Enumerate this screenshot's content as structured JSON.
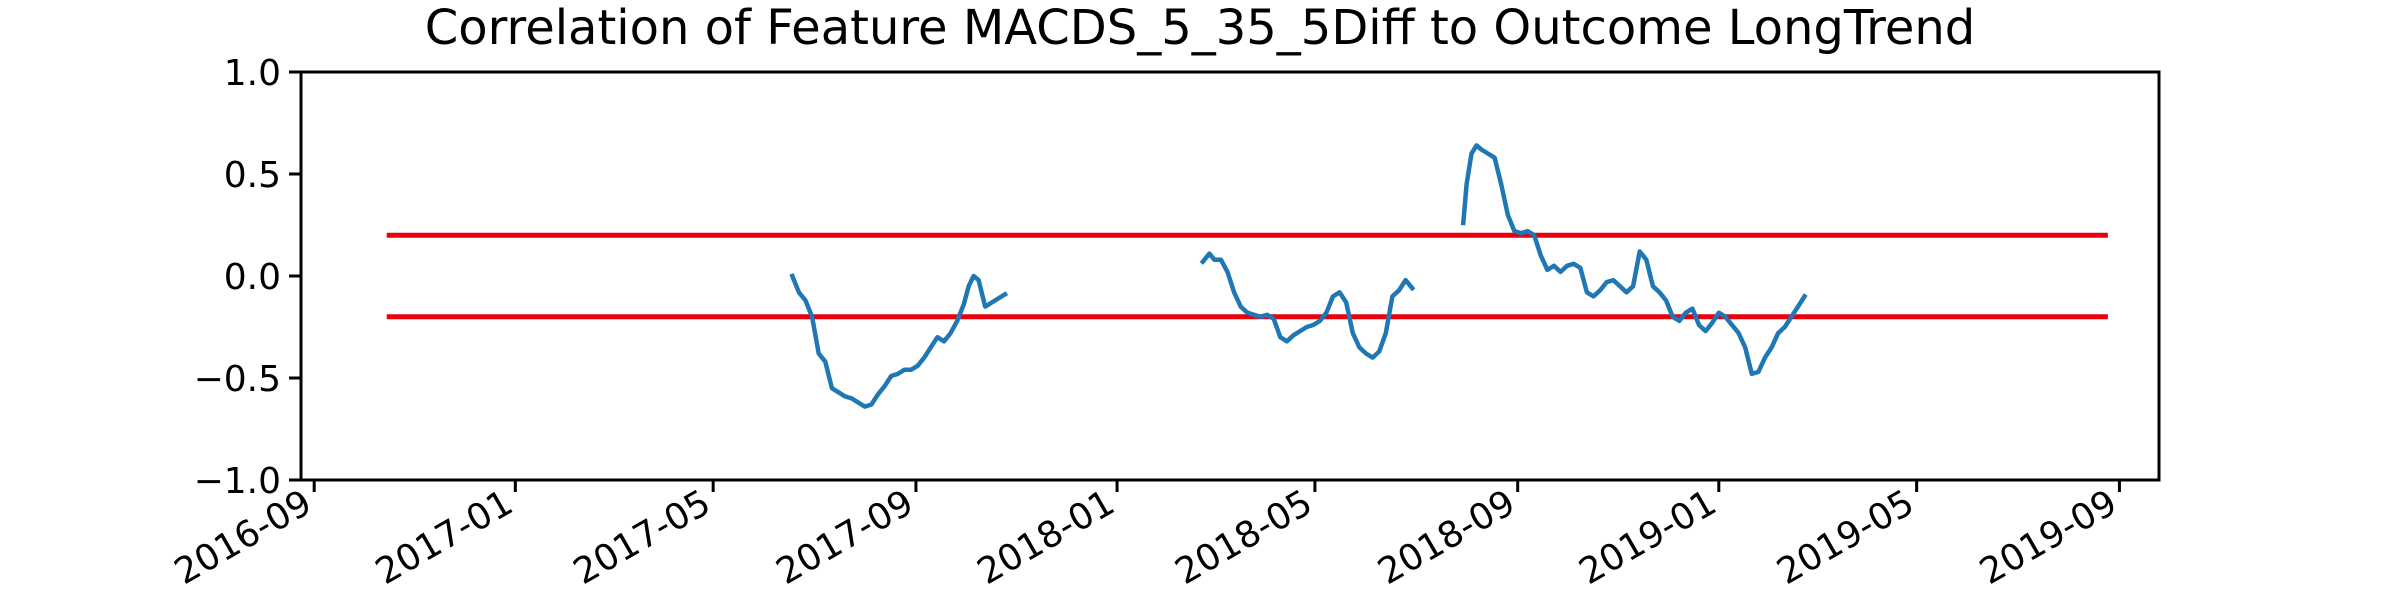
{
  "chart_data": {
    "type": "line",
    "title": "Correlation of Feature MACDS_5_35_5Diff to Outcome LongTrend",
    "xlabel": "",
    "ylabel": "",
    "xlim": [
      "2016-08-24",
      "2019-09-25"
    ],
    "ylim": [
      -1.0,
      1.0
    ],
    "x_ticks": [
      "2016-09",
      "2017-01",
      "2017-05",
      "2017-09",
      "2018-01",
      "2018-05",
      "2018-09",
      "2019-01",
      "2019-05",
      "2019-09"
    ],
    "y_ticks": [
      "1.0",
      "0.5",
      "0.0",
      "−0.5",
      "−1.0"
    ],
    "grid": false,
    "legend": "none",
    "reference_lines": [
      {
        "y": 0.2,
        "x_start": "2016-10-15",
        "x_end": "2019-08-25",
        "color": "#e8000b"
      },
      {
        "y": -0.2,
        "x_start": "2016-10-15",
        "x_end": "2019-08-25",
        "color": "#e8000b"
      }
    ],
    "series": [
      {
        "color": "#1f77b4",
        "segments": [
          [
            [
              "2017-06-18",
              0.0
            ],
            [
              "2017-06-22",
              -0.08
            ],
            [
              "2017-06-26",
              -0.12
            ],
            [
              "2017-06-30",
              -0.2
            ],
            [
              "2017-07-04",
              -0.38
            ],
            [
              "2017-07-08",
              -0.42
            ],
            [
              "2017-07-12",
              -0.55
            ],
            [
              "2017-07-16",
              -0.57
            ],
            [
              "2017-07-20",
              -0.59
            ],
            [
              "2017-07-24",
              -0.6
            ],
            [
              "2017-07-28",
              -0.62
            ],
            [
              "2017-08-01",
              -0.64
            ],
            [
              "2017-08-05",
              -0.63
            ],
            [
              "2017-08-09",
              -0.58
            ],
            [
              "2017-08-13",
              -0.54
            ],
            [
              "2017-08-17",
              -0.49
            ],
            [
              "2017-08-21",
              -0.48
            ],
            [
              "2017-08-25",
              -0.46
            ],
            [
              "2017-08-29",
              -0.46
            ],
            [
              "2017-09-02",
              -0.44
            ],
            [
              "2017-09-06",
              -0.4
            ],
            [
              "2017-09-10",
              -0.35
            ],
            [
              "2017-09-14",
              -0.3
            ],
            [
              "2017-09-18",
              -0.32
            ],
            [
              "2017-09-22",
              -0.28
            ],
            [
              "2017-09-26",
              -0.22
            ],
            [
              "2017-09-30",
              -0.14
            ],
            [
              "2017-10-03",
              -0.05
            ],
            [
              "2017-10-06",
              0.0
            ],
            [
              "2017-10-09",
              -0.02
            ],
            [
              "2017-10-13",
              -0.15
            ],
            [
              "2017-10-17",
              -0.13
            ],
            [
              "2017-10-21",
              -0.11
            ],
            [
              "2017-10-25",
              -0.09
            ]
          ],
          [
            [
              "2018-02-22",
              0.07
            ],
            [
              "2018-02-26",
              0.11
            ],
            [
              "2018-03-01",
              0.08
            ],
            [
              "2018-03-05",
              0.08
            ],
            [
              "2018-03-09",
              0.02
            ],
            [
              "2018-03-13",
              -0.08
            ],
            [
              "2018-03-17",
              -0.15
            ],
            [
              "2018-03-21",
              -0.18
            ],
            [
              "2018-03-25",
              -0.19
            ],
            [
              "2018-03-29",
              -0.2
            ],
            [
              "2018-04-02",
              -0.19
            ],
            [
              "2018-04-06",
              -0.21
            ],
            [
              "2018-04-10",
              -0.3
            ],
            [
              "2018-04-14",
              -0.32
            ],
            [
              "2018-04-18",
              -0.29
            ],
            [
              "2018-04-22",
              -0.27
            ],
            [
              "2018-04-26",
              -0.25
            ],
            [
              "2018-04-30",
              -0.24
            ],
            [
              "2018-05-04",
              -0.22
            ],
            [
              "2018-05-08",
              -0.18
            ],
            [
              "2018-05-12",
              -0.1
            ],
            [
              "2018-05-16",
              -0.08
            ],
            [
              "2018-05-20",
              -0.13
            ],
            [
              "2018-05-24",
              -0.28
            ],
            [
              "2018-05-28",
              -0.35
            ],
            [
              "2018-06-01",
              -0.38
            ],
            [
              "2018-06-05",
              -0.4
            ],
            [
              "2018-06-09",
              -0.37
            ],
            [
              "2018-06-13",
              -0.28
            ],
            [
              "2018-06-17",
              -0.1
            ],
            [
              "2018-06-21",
              -0.07
            ],
            [
              "2018-06-25",
              -0.02
            ],
            [
              "2018-06-29",
              -0.06
            ]
          ],
          [
            [
              "2018-07-30",
              0.26
            ],
            [
              "2018-08-01",
              0.45
            ],
            [
              "2018-08-04",
              0.6
            ],
            [
              "2018-08-07",
              0.64
            ],
            [
              "2018-08-10",
              0.62
            ],
            [
              "2018-08-14",
              0.6
            ],
            [
              "2018-08-18",
              0.58
            ],
            [
              "2018-08-22",
              0.45
            ],
            [
              "2018-08-26",
              0.3
            ],
            [
              "2018-08-30",
              0.22
            ],
            [
              "2018-09-03",
              0.21
            ],
            [
              "2018-09-07",
              0.22
            ],
            [
              "2018-09-11",
              0.2
            ],
            [
              "2018-09-15",
              0.1
            ],
            [
              "2018-09-19",
              0.03
            ],
            [
              "2018-09-23",
              0.05
            ],
            [
              "2018-09-27",
              0.02
            ],
            [
              "2018-10-01",
              0.05
            ],
            [
              "2018-10-05",
              0.06
            ],
            [
              "2018-10-09",
              0.04
            ],
            [
              "2018-10-13",
              -0.08
            ],
            [
              "2018-10-17",
              -0.1
            ],
            [
              "2018-10-21",
              -0.07
            ],
            [
              "2018-10-25",
              -0.03
            ],
            [
              "2018-10-29",
              -0.02
            ],
            [
              "2018-11-02",
              -0.05
            ],
            [
              "2018-11-06",
              -0.08
            ],
            [
              "2018-11-10",
              -0.05
            ],
            [
              "2018-11-14",
              0.12
            ],
            [
              "2018-11-18",
              0.08
            ],
            [
              "2018-11-22",
              -0.05
            ],
            [
              "2018-11-26",
              -0.08
            ],
            [
              "2018-11-30",
              -0.12
            ],
            [
              "2018-12-04",
              -0.2
            ],
            [
              "2018-12-08",
              -0.22
            ],
            [
              "2018-12-12",
              -0.18
            ],
            [
              "2018-12-16",
              -0.16
            ],
            [
              "2018-12-20",
              -0.24
            ],
            [
              "2018-12-24",
              -0.27
            ],
            [
              "2018-12-28",
              -0.23
            ],
            [
              "2019-01-01",
              -0.18
            ],
            [
              "2019-01-05",
              -0.2
            ],
            [
              "2019-01-09",
              -0.24
            ],
            [
              "2019-01-13",
              -0.28
            ],
            [
              "2019-01-17",
              -0.35
            ],
            [
              "2019-01-21",
              -0.48
            ],
            [
              "2019-01-25",
              -0.47
            ],
            [
              "2019-01-29",
              -0.4
            ],
            [
              "2019-02-02",
              -0.35
            ],
            [
              "2019-02-06",
              -0.28
            ],
            [
              "2019-02-10",
              -0.25
            ],
            [
              "2019-02-14",
              -0.2
            ],
            [
              "2019-02-18",
              -0.15
            ],
            [
              "2019-02-22",
              -0.1
            ]
          ]
        ]
      }
    ]
  }
}
